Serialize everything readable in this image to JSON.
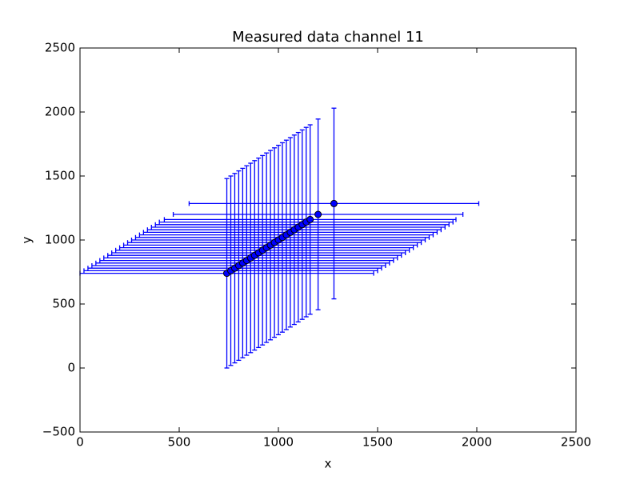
{
  "chart_data": {
    "type": "errorbar",
    "title": "Measured data channel 11",
    "x_label": "x",
    "y_label": "y",
    "x": [
      740,
      760,
      780,
      800,
      820,
      840,
      860,
      880,
      900,
      920,
      940,
      960,
      980,
      1000,
      1020,
      1040,
      1060,
      1080,
      1100,
      1120,
      1140,
      1160,
      1200,
      1280
    ],
    "y": [
      740,
      760,
      780,
      800,
      820,
      840,
      860,
      880,
      900,
      920,
      940,
      960,
      980,
      1000,
      1020,
      1040,
      1060,
      1080,
      1100,
      1120,
      1140,
      1160,
      1200,
      1285
    ],
    "xerr": [
      740,
      740,
      740,
      740,
      740,
      740,
      740,
      740,
      740,
      740,
      740,
      740,
      740,
      740,
      740,
      740,
      740,
      740,
      740,
      740,
      740,
      735,
      730,
      730
    ],
    "yerr": [
      740,
      740,
      740,
      740,
      740,
      740,
      740,
      740,
      740,
      740,
      740,
      740,
      740,
      740,
      740,
      740,
      740,
      740,
      740,
      740,
      740,
      740,
      745,
      745
    ],
    "color": "#0000ff",
    "xlim": [
      0,
      2500
    ],
    "xticks": [
      0,
      500,
      1000,
      1500,
      2000,
      2500
    ],
    "ylim": [
      -500,
      2500
    ],
    "yticks": [
      {
        "value": -500,
        "label": "−500"
      },
      0,
      500,
      1000,
      1500,
      2000,
      2500
    ]
  }
}
